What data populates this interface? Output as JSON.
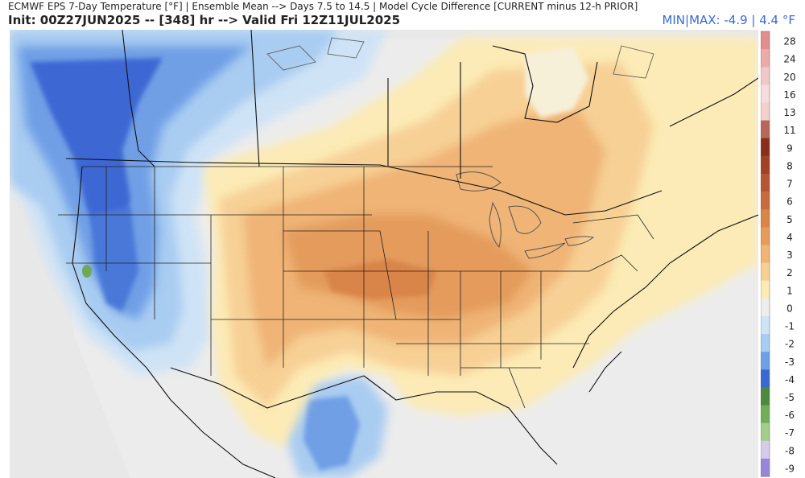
{
  "header": {
    "title": "ECMWF EPS 7-Day Temperature [°F] | Ensemble Mean --> Days 7.5 to 14.5 | Model Cycle Difference [CURRENT minus 12-h PRIOR]",
    "init": "Init: 00Z27JUN2025 -- [348] hr --> Valid Fri 12Z11JUL2025",
    "minmax": "MIN|MAX: -4.9 | 4.4 °F"
  },
  "colorbar": {
    "labels": [
      "28",
      "24",
      "20",
      "16",
      "13",
      "11",
      "9",
      "8",
      "7",
      "6",
      "5",
      "4",
      "3",
      "2",
      "1",
      "0",
      "-1",
      "-2",
      "-3",
      "-4",
      "-5",
      "-6",
      "-7",
      "-8",
      "-9"
    ],
    "colors": [
      "#e08e8e",
      "#eaabab",
      "#f1c8c8",
      "#f6dcdc",
      "#f2d1cc",
      "#b6685a",
      "#8a2e1c",
      "#a14128",
      "#b65534",
      "#c96a3e",
      "#d98449",
      "#e49b5c",
      "#efb476",
      "#f7d095",
      "#fcebb6",
      "#ededed",
      "#cfe3f6",
      "#a9ccf1",
      "#6f9fe6",
      "#3d68d3",
      "#4d8a3d",
      "#73ad5c",
      "#a3cd8a",
      "#d7cbec",
      "#9a86d9"
    ],
    "boundaries": [
      28,
      24,
      20,
      16,
      13,
      11,
      9,
      8,
      7,
      6,
      5,
      4,
      3,
      2,
      1,
      0,
      -1,
      -2,
      -3,
      -4,
      -5,
      -6,
      -7,
      -8,
      -9,
      -10
    ]
  }
}
